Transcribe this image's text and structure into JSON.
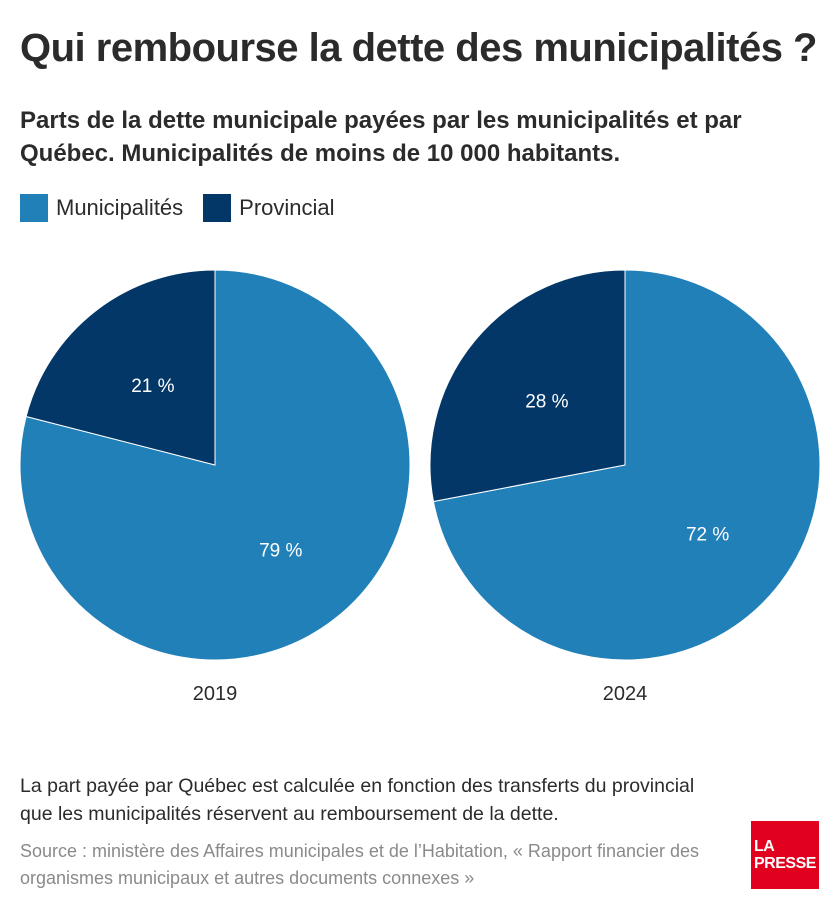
{
  "header": {
    "title": "Qui rembourse la dette des municipalités ?",
    "subtitle": "Parts de la dette municipale payées par les municipalités et par Québec. Municipalités de moins de 10 000 habitants."
  },
  "colors": {
    "municipalites": "#2280b8",
    "provincial": "#033768",
    "separator": "#ffffff",
    "logo": "#e1001e"
  },
  "chart_data": {
    "type": "pie",
    "title": "Qui rembourse la dette des municipalités ?",
    "subtitle": "Parts de la dette municipale payées par les municipalités et par Québec. Municipalités de moins de 10 000 habitants.",
    "legend": [
      "Municipalités",
      "Provincial"
    ],
    "legend_position": "top-left",
    "pies": [
      {
        "label": "2019",
        "slices": [
          {
            "name": "Municipalités",
            "value": 79,
            "label": "79 %"
          },
          {
            "name": "Provincial",
            "value": 21,
            "label": "21 %"
          }
        ]
      },
      {
        "label": "2024",
        "slices": [
          {
            "name": "Municipalités",
            "value": 72,
            "label": "72 %"
          },
          {
            "name": "Provincial",
            "value": 28,
            "label": "28 %"
          }
        ]
      }
    ]
  },
  "footer": {
    "note": "La part payée par Québec est calculée en fonction des transferts du provincial que les municipalités réservent au remboursement de la dette.",
    "source": "Source : ministère des Affaires municipales et de l’Habitation, « Rapport financier des organismes municipaux et autres documents connexes »",
    "logo_line1": "LA",
    "logo_line2": "PRESSE"
  }
}
